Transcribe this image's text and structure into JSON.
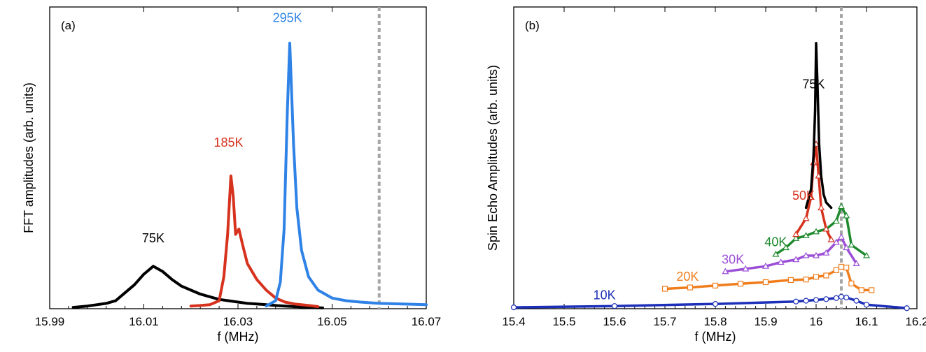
{
  "chart_data": [
    {
      "type": "line",
      "panel_label": "(a)",
      "xlabel": "f (MHz)",
      "ylabel": "FFT amplitudes (arb. units)",
      "xlim": [
        15.99,
        16.07
      ],
      "ylim": [
        0,
        1.0
      ],
      "xticks": [
        15.99,
        16.01,
        16.03,
        16.05,
        16.07
      ],
      "xtick_labels": [
        "15.99",
        "16.01",
        "16.03",
        "16.05",
        "16.07"
      ],
      "vline_x": 16.06,
      "series": [
        {
          "name": "75K",
          "color": "#000000",
          "x": [
            15.995,
            15.998,
            16.0,
            16.002,
            16.004,
            16.006,
            16.008,
            16.01,
            16.012,
            16.014,
            16.016,
            16.018,
            16.02,
            16.022,
            16.024,
            16.026,
            16.028,
            16.03,
            16.032,
            16.034,
            16.036,
            16.038,
            16.04,
            16.042,
            16.045,
            16.048
          ],
          "y": [
            0.005,
            0.01,
            0.015,
            0.02,
            0.03,
            0.06,
            0.09,
            0.13,
            0.16,
            0.14,
            0.11,
            0.085,
            0.07,
            0.055,
            0.045,
            0.035,
            0.03,
            0.025,
            0.02,
            0.018,
            0.015,
            0.012,
            0.01,
            0.008,
            0.005,
            0.003
          ]
        },
        {
          "name": "185K",
          "color": "#d6321e",
          "x": [
            16.02,
            16.022,
            16.024,
            16.026,
            16.027,
            16.0278,
            16.0285,
            16.029,
            16.0295,
            16.0302,
            16.031,
            16.032,
            16.034,
            16.036,
            16.038,
            16.04,
            16.042,
            16.045,
            16.047
          ],
          "y": [
            0.01,
            0.012,
            0.015,
            0.03,
            0.12,
            0.28,
            0.5,
            0.42,
            0.28,
            0.3,
            0.24,
            0.17,
            0.11,
            0.07,
            0.04,
            0.025,
            0.018,
            0.012,
            0.008
          ]
        },
        {
          "name": "295K",
          "color": "#2f82e6",
          "x": [
            16.036,
            16.038,
            16.039,
            16.0398,
            16.0405,
            16.041,
            16.0418,
            16.0425,
            16.0435,
            16.045,
            16.047,
            16.05,
            16.053,
            16.056,
            16.06,
            16.065,
            16.07
          ],
          "y": [
            0.01,
            0.03,
            0.1,
            0.3,
            0.75,
            1.0,
            0.62,
            0.38,
            0.22,
            0.12,
            0.07,
            0.04,
            0.03,
            0.025,
            0.02,
            0.018,
            0.015
          ]
        }
      ],
      "annotations": [
        {
          "text": "75K",
          "x": 16.012,
          "y": 0.25,
          "color": "#000000"
        },
        {
          "text": "185K",
          "x": 16.028,
          "y": 0.61,
          "color": "#d6321e"
        },
        {
          "text": "295K",
          "x": 16.0405,
          "y": 1.08,
          "color": "#2f82e6"
        }
      ]
    },
    {
      "type": "line",
      "panel_label": "(b)",
      "xlabel": "f (MHz)",
      "ylabel": "Spin Echo Amplitudes (arb. units)",
      "xlim": [
        15.4,
        16.2
      ],
      "ylim": [
        0,
        1.0
      ],
      "xticks": [
        15.4,
        15.5,
        15.6,
        15.7,
        15.8,
        15.9,
        16.0,
        16.1,
        16.2
      ],
      "xtick_labels": [
        "15.4",
        "15.5",
        "15.6",
        "15.7",
        "15.8",
        "15.9",
        "16",
        "16.1",
        "16.2"
      ],
      "vline_x": 16.05,
      "series": [
        {
          "name": "10K",
          "color": "#1c2fb8",
          "marker": "circle",
          "x": [
            15.4,
            15.6,
            15.8,
            15.96,
            15.98,
            16.0,
            16.02,
            16.04,
            16.05,
            16.06,
            16.08,
            16.1,
            16.18
          ],
          "y": [
            0.005,
            0.01,
            0.018,
            0.027,
            0.03,
            0.033,
            0.036,
            0.04,
            0.045,
            0.042,
            0.03,
            0.015,
            0.002
          ]
        },
        {
          "name": "20K",
          "color": "#f07d1c",
          "marker": "square",
          "x": [
            15.7,
            15.75,
            15.8,
            15.85,
            15.9,
            15.95,
            15.98,
            16.0,
            16.02,
            16.04,
            16.05,
            16.06,
            16.07,
            16.09,
            16.11
          ],
          "y": [
            0.075,
            0.08,
            0.087,
            0.094,
            0.1,
            0.108,
            0.11,
            0.12,
            0.125,
            0.145,
            0.158,
            0.155,
            0.095,
            0.07,
            0.07
          ]
        },
        {
          "name": "30K",
          "color": "#9b4fd6",
          "marker": "triangle",
          "x": [
            15.82,
            15.86,
            15.9,
            15.93,
            15.96,
            15.98,
            16.0,
            16.02,
            16.04,
            16.05,
            16.06,
            16.08
          ],
          "y": [
            0.14,
            0.15,
            0.16,
            0.175,
            0.185,
            0.2,
            0.2,
            0.21,
            0.25,
            0.27,
            0.23,
            0.17
          ]
        },
        {
          "name": "40K",
          "color": "#1f8a2e",
          "marker": "triangle",
          "x": [
            15.92,
            15.94,
            15.96,
            15.98,
            16.0,
            16.02,
            16.04,
            16.05,
            16.06,
            16.07,
            16.1
          ],
          "y": [
            0.205,
            0.23,
            0.265,
            0.275,
            0.29,
            0.3,
            0.33,
            0.385,
            0.35,
            0.24,
            0.2
          ]
        },
        {
          "name": "50K",
          "color": "#d6321e",
          "marker": "triangle",
          "x": [
            15.96,
            15.98,
            15.99,
            15.995,
            16.0,
            16.005,
            16.01,
            16.02,
            16.03
          ],
          "y": [
            0.28,
            0.34,
            0.42,
            0.55,
            0.62,
            0.5,
            0.38,
            0.3,
            0.26
          ]
        },
        {
          "name": "75K",
          "color": "#000000",
          "marker": "none",
          "x": [
            15.98,
            15.99,
            15.995,
            15.998,
            16.0,
            16.003,
            16.006,
            16.01,
            16.015,
            16.02,
            16.03
          ],
          "y": [
            0.38,
            0.45,
            0.58,
            0.75,
            1.0,
            0.82,
            0.62,
            0.5,
            0.43,
            0.4,
            0.38
          ]
        }
      ],
      "annotations": [
        {
          "text": "75K",
          "x": 15.995,
          "y": 0.83,
          "color": "#000000"
        },
        {
          "text": "50K",
          "x": 15.975,
          "y": 0.41,
          "color": "#d6321e"
        },
        {
          "text": "40K",
          "x": 15.92,
          "y": 0.235,
          "color": "#1f8a2e"
        },
        {
          "text": "30K",
          "x": 15.835,
          "y": 0.17,
          "color": "#9b4fd6"
        },
        {
          "text": "20K",
          "x": 15.745,
          "y": 0.105,
          "color": "#f07d1c"
        },
        {
          "text": "10K",
          "x": 15.58,
          "y": 0.035,
          "color": "#1c2fb8"
        }
      ]
    }
  ]
}
